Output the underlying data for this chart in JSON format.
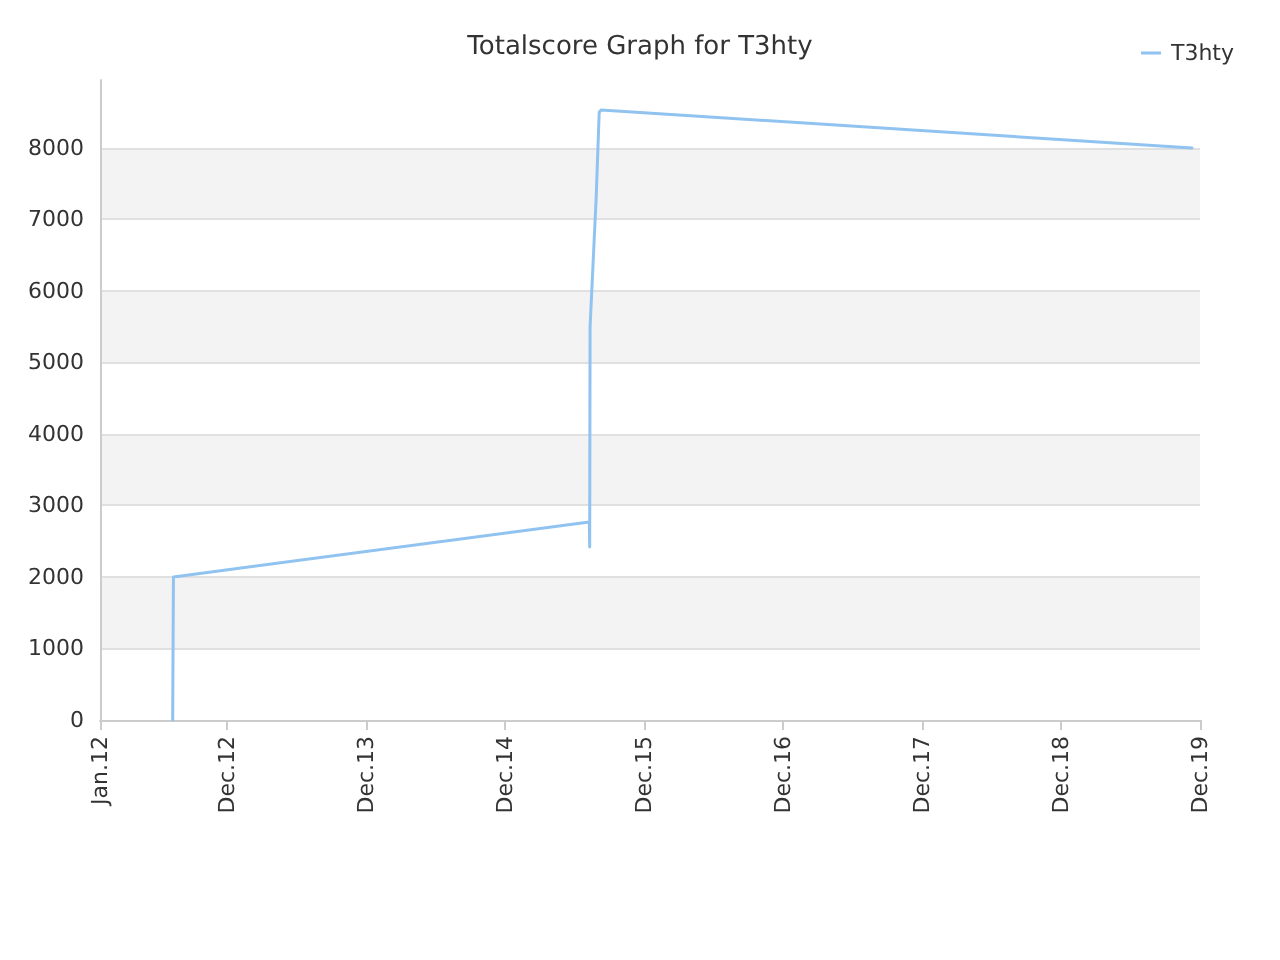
{
  "chart_data": {
    "type": "line",
    "title": "Totalscore Graph for T3hty",
    "x": [
      "2012-07-10",
      "2012-07-12",
      "2015-07-10",
      "2015-07-11",
      "2015-07-12",
      "2015-07-20",
      "2015-07-28",
      "2015-08-05",
      "2015-08-10",
      "2019-11-10"
    ],
    "series": [
      {
        "name": "T3hty",
        "color": "#90c3f0",
        "values": [
          0,
          2000,
          2770,
          2420,
          5500,
          6400,
          7300,
          8500,
          8530,
          8000
        ]
      }
    ],
    "xlim": [
      "2012-01-01",
      "2019-12-01"
    ],
    "xticks": [
      {
        "value": "2012-01-01",
        "label": "Jan.12"
      },
      {
        "value": "2012-12-01",
        "label": "Dec.12"
      },
      {
        "value": "2013-12-01",
        "label": "Dec.13"
      },
      {
        "value": "2014-12-01",
        "label": "Dec.14"
      },
      {
        "value": "2015-12-01",
        "label": "Dec.15"
      },
      {
        "value": "2016-12-01",
        "label": "Dec.16"
      },
      {
        "value": "2017-12-01",
        "label": "Dec.17"
      },
      {
        "value": "2018-12-01",
        "label": "Dec.18"
      },
      {
        "value": "2019-12-01",
        "label": "Dec.19"
      }
    ],
    "ylim": [
      0,
      8950
    ],
    "yticks": [
      0,
      1000,
      2000,
      3000,
      4000,
      5000,
      6000,
      7000,
      8000
    ],
    "grid": "y",
    "legend": "top right",
    "marker": "none",
    "line_style": "solid"
  }
}
